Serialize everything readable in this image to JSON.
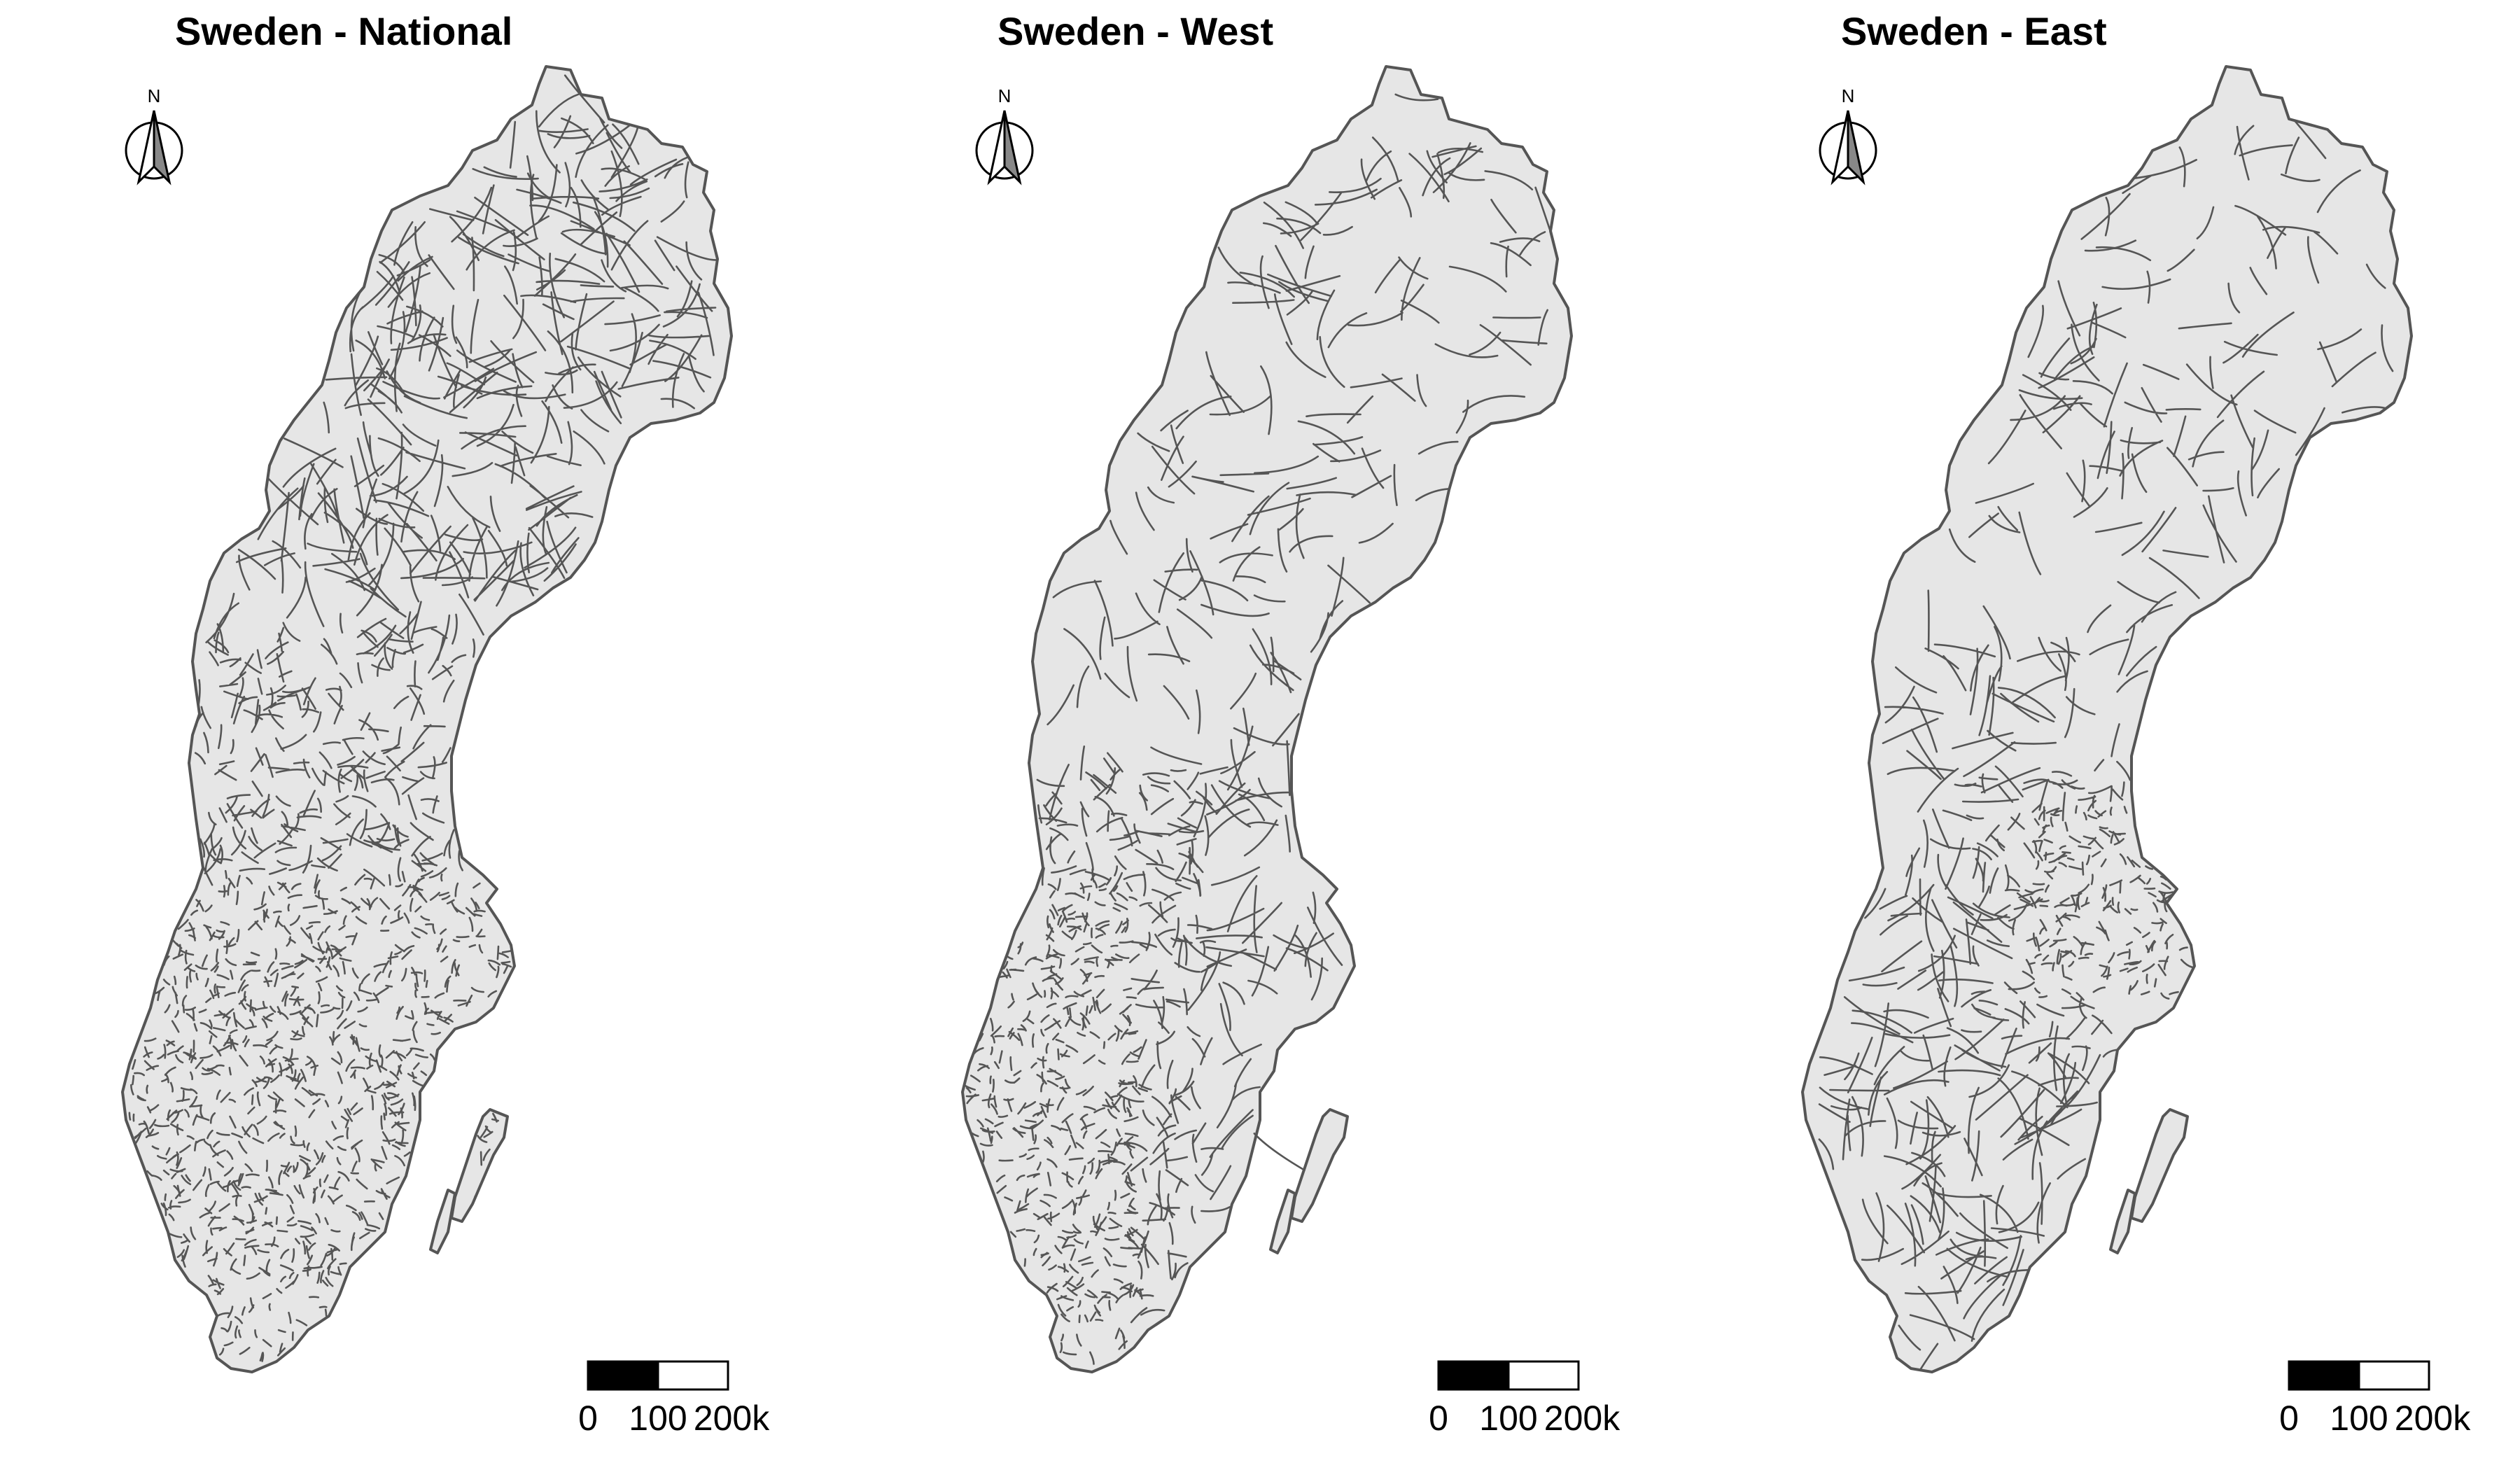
{
  "figure": {
    "panels": [
      {
        "id": "national",
        "title": "Sweden - National",
        "north_label": "N",
        "scale_labels": [
          "0",
          "100",
          "200k"
        ],
        "dense_region": "south"
      },
      {
        "id": "west",
        "title": "Sweden - West",
        "north_label": "N",
        "scale_labels": [
          "0",
          "100",
          "200k"
        ],
        "dense_region": "southwest"
      },
      {
        "id": "east",
        "title": "Sweden - East",
        "north_label": "N",
        "scale_labels": [
          "0",
          "100",
          "200k"
        ],
        "dense_region": "east-central"
      }
    ]
  },
  "colors": {
    "land_fill": "#e6e6e6",
    "border": "#555555",
    "background": "#ffffff",
    "text": "#000000"
  }
}
